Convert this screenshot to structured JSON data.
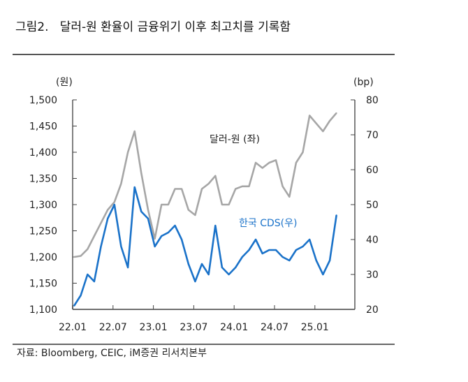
{
  "title": "그림2.   달러-원 환율이 금융위기 이후 최고치를 기록함",
  "source": "자료: Bloomberg, CEIC, iM증권 리서치본부",
  "colors": {
    "usdkrw": "#a6a6a6",
    "cds": "#1a72c9",
    "axis": "#808080"
  },
  "chart_data": {
    "type": "line",
    "title": "달러-원 환율이 금융위기 이후 최고치를 기록함",
    "xlabel": "",
    "ylabel_left": "(원)",
    "ylabel_right": "(bp)",
    "x_ticks": [
      "22.01",
      "22.07",
      "23.01",
      "23.07",
      "24.01",
      "24.07",
      "25.01"
    ],
    "ylim_left": [
      1100,
      1500
    ],
    "yticks_left": [
      "1,500",
      "1,450",
      "1,400",
      "1,350",
      "1,300",
      "1,250",
      "1,200",
      "1,150",
      "1,100"
    ],
    "ylim_right": [
      20,
      80
    ],
    "yticks_right": [
      "80",
      "70",
      "60",
      "50",
      "40",
      "30",
      "20"
    ],
    "x": [
      "22.01",
      "22.02",
      "22.03",
      "22.04",
      "22.05",
      "22.06",
      "22.07",
      "22.08",
      "22.09",
      "22.10",
      "22.11",
      "22.12",
      "23.01",
      "23.02",
      "23.03",
      "23.04",
      "23.05",
      "23.06",
      "23.07",
      "23.08",
      "23.09",
      "23.10",
      "23.11",
      "23.12",
      "24.01",
      "24.02",
      "24.03",
      "24.04",
      "24.05",
      "24.06",
      "24.07",
      "24.08",
      "24.09",
      "24.10",
      "24.11",
      "24.12",
      "25.01",
      "25.02",
      "25.03",
      "25.04"
    ],
    "series": [
      {
        "name": "달러-원 (좌)",
        "axis": "left",
        "values": [
          1200,
          1202,
          1215,
          1240,
          1265,
          1290,
          1305,
          1340,
          1400,
          1440,
          1360,
          1290,
          1235,
          1300,
          1300,
          1330,
          1330,
          1290,
          1280,
          1330,
          1340,
          1355,
          1300,
          1300,
          1330,
          1335,
          1335,
          1380,
          1370,
          1380,
          1385,
          1335,
          1315,
          1380,
          1400,
          1470,
          1455,
          1440,
          1460,
          1475
        ]
      },
      {
        "name": "한국 CDS(우)",
        "axis": "right",
        "values": [
          21,
          24,
          30,
          28,
          38,
          46,
          50,
          38,
          32,
          55,
          48,
          46,
          38,
          41,
          42,
          44,
          40,
          33,
          28,
          33,
          30,
          44,
          32,
          30,
          32,
          35,
          37,
          40,
          36,
          37,
          37,
          35,
          34,
          37,
          38,
          40,
          34,
          30,
          34,
          47
        ]
      }
    ],
    "annotations": [
      "달러-원 (좌)",
      "한국 CDS(우)"
    ],
    "legend": "inline",
    "grid": false
  }
}
